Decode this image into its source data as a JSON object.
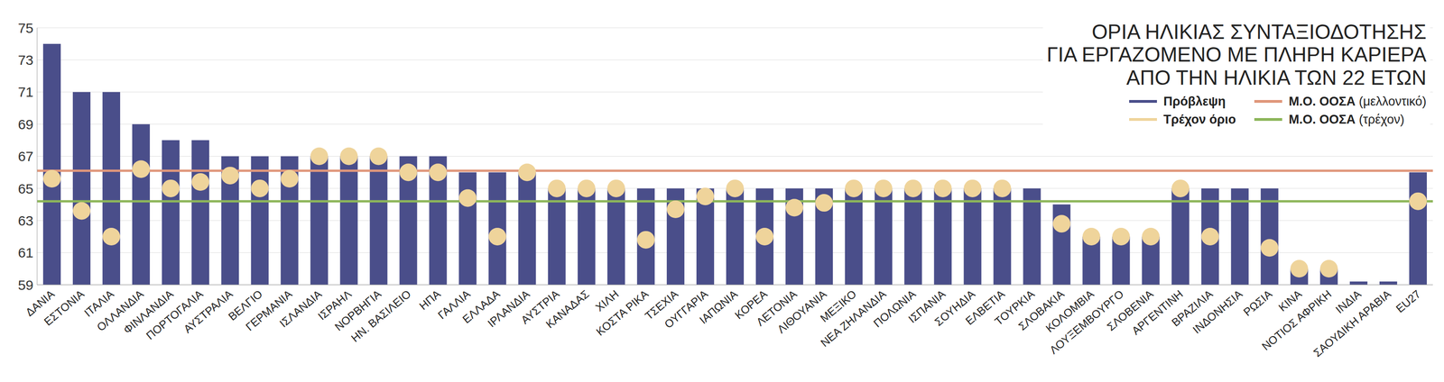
{
  "chart_data": {
    "type": "bar",
    "title": "ΟΡΙΑ ΗΛΙΚΙΑΣ ΣΥΝΤΑΞΙΟΔΟΤΗΣΗΣ\nΓΙΑ ΕΡΓΑΖΟΜΕΝΟ ΜΕ ΠΛΗΡΗ ΚΑΡΙΕΡΑ\nΑΠΟ ΤΗΝ ΗΛΙΚΙΑ ΤΩΝ 22 ΕΤΩΝ",
    "categories": [
      "ΔΑΝΙΑ",
      "ΕΣΤΟΝΙΑ",
      "ΙΤΑΛΙΑ",
      "ΟΛΛΑΝΔΙΑ",
      "ΦΙΝΛΑΝΔΙΑ",
      "ΠΟΡΤΟΓΑΛΙΑ",
      "ΑΥΣΤΡΑΛΙΑ",
      "ΒΕΛΓΙΟ",
      "ΓΕΡΜΑΝΙΑ",
      "ΙΣΛΑΝΔΙΑ",
      "ΙΣΡΑΗΛ",
      "ΝΟΡΒΗΓΙΑ",
      "ΗΝ. ΒΑΣΙΛΕΙΟ",
      "ΗΠΑ",
      "ΓΑΛΛΙΑ",
      "ΕΛΛΑΔΑ",
      "ΙΡΛΑΝΔΙΑ",
      "ΑΥΣΤΡΙΑ",
      "ΚΑΝΑΔΑΣ",
      "ΧΙΛΗ",
      "ΚΟΣΤΑ ΡΙΚΑ",
      "ΤΣΕΧΙΑ",
      "ΟΥΓΓΑΡΙΑ",
      "ΙΑΠΩΝΙΑ",
      "ΚΟΡΕΑ",
      "ΛΕΤΟΝΙΑ",
      "ΛΙΘΟΥΑΝΙΑ",
      "ΜΕΞΙΚΟ",
      "ΝΕΑ ΖΗΛΑΝΔΙΑ",
      "ΠΟΛΩΝΙΑ",
      "ΙΣΠΑΝΙΑ",
      "ΣΟΥΗΔΙΑ",
      "ΕΛΒΕΤΙΑ",
      "ΤΟΥΡΚΙΑ",
      "ΣΛΟΒΑΚΙΑ",
      "ΚΟΛΟΜΒΙΑ",
      "ΛΟΥΞΕΜΒΟΥΡΓΟ",
      "ΣΛΟΒΕΝΙΑ",
      "ΑΡΓΕΝΤΙΝΗ",
      "ΒΡΑΖΙΛΙΑ",
      "ΙΝΔΟΝΗΣΙΑ",
      "ΡΩΣΙΑ",
      "ΚΙΝΑ",
      "ΝΟΤΙΟΣ ΑΦΡΙΚΗ",
      "ΙΝΔΙΑ",
      "ΣΑΟΥΔΙΚΗ ΑΡΑΒΙΑ",
      "EU27"
    ],
    "series": [
      {
        "name": "Πρόβλεψη",
        "type": "bar",
        "color": "#4a4e8a",
        "values": [
          74,
          71,
          71,
          69,
          68,
          68,
          67,
          67,
          67,
          67,
          67,
          67,
          67,
          67,
          66,
          66,
          66,
          65,
          65,
          65,
          65,
          65,
          65,
          65,
          65,
          65,
          65,
          65,
          65,
          65,
          65,
          65,
          65,
          65,
          64,
          62,
          62,
          62,
          65,
          65,
          65,
          65,
          60,
          60,
          59.2,
          59.2,
          66
        ]
      },
      {
        "name": "Τρέχον όριο",
        "type": "scatter",
        "marker": "circle",
        "color": "#efd49b",
        "values": [
          65.6,
          63.6,
          62,
          66.2,
          65,
          65.4,
          65.8,
          65,
          65.6,
          67,
          67,
          67,
          66,
          66,
          64.4,
          62,
          66,
          65,
          65,
          65,
          61.8,
          63.7,
          64.5,
          65,
          62,
          63.8,
          64.1,
          65,
          65,
          65,
          65,
          65,
          65,
          null,
          62.8,
          62,
          62,
          62,
          65,
          62,
          null,
          61.3,
          60,
          60,
          null,
          null,
          64.2
        ]
      }
    ],
    "reference_lines": [
      {
        "name": "Μ.Ο. ΟΟΣΑ (μελλοντικό)",
        "color": "#e0977b",
        "value": 66.1
      },
      {
        "name": "Μ.Ο. ΟΟΣΑ (τρέχον)",
        "color": "#8db65a",
        "value": 64.2
      }
    ],
    "ylim": [
      59,
      75
    ],
    "yticks": [
      59,
      61,
      63,
      65,
      67,
      69,
      71,
      73,
      75
    ],
    "grid": true,
    "legend": "upper right"
  }
}
